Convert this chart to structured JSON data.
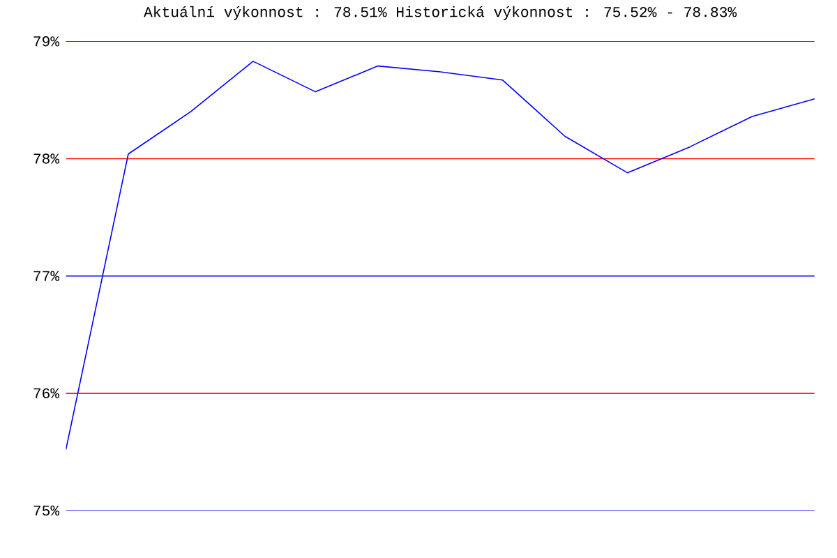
{
  "chart_data": {
    "type": "line",
    "title": "Aktuální výkonnost : 78.51%  Historická výkonnost : 75.52% - 78.83%",
    "categories": [
      null,
      null,
      null,
      null,
      null,
      null,
      null,
      null,
      null,
      null,
      null,
      null,
      null
    ],
    "series": [
      {
        "color": "#0000ff",
        "values": [
          75.52,
          78.04,
          78.4,
          78.83,
          78.57,
          78.79,
          78.74,
          78.67,
          78.19,
          77.88,
          78.1,
          78.36,
          78.51
        ]
      }
    ],
    "ylim": [
      75,
      79
    ],
    "yticks": [
      {
        "value": 75,
        "label": "75%"
      },
      {
        "value": 76,
        "label": "76%"
      },
      {
        "value": 77,
        "label": "77%"
      },
      {
        "value": 78,
        "label": "78%"
      },
      {
        "value": 79,
        "label": "79%"
      }
    ],
    "ref_lines": [
      {
        "axis": "y",
        "value": 75,
        "color": "#0000ff"
      },
      {
        "axis": "y",
        "value": 76,
        "color": "#ff0000"
      },
      {
        "axis": "y",
        "value": 77,
        "color": "#0000ff"
      },
      {
        "axis": "y",
        "value": 78,
        "color": "#ff0000"
      },
      {
        "axis": "y",
        "value": 79,
        "color": "#0000ff"
      }
    ],
    "marker": "none",
    "line_style": "solid",
    "tick_labels": "y"
  }
}
